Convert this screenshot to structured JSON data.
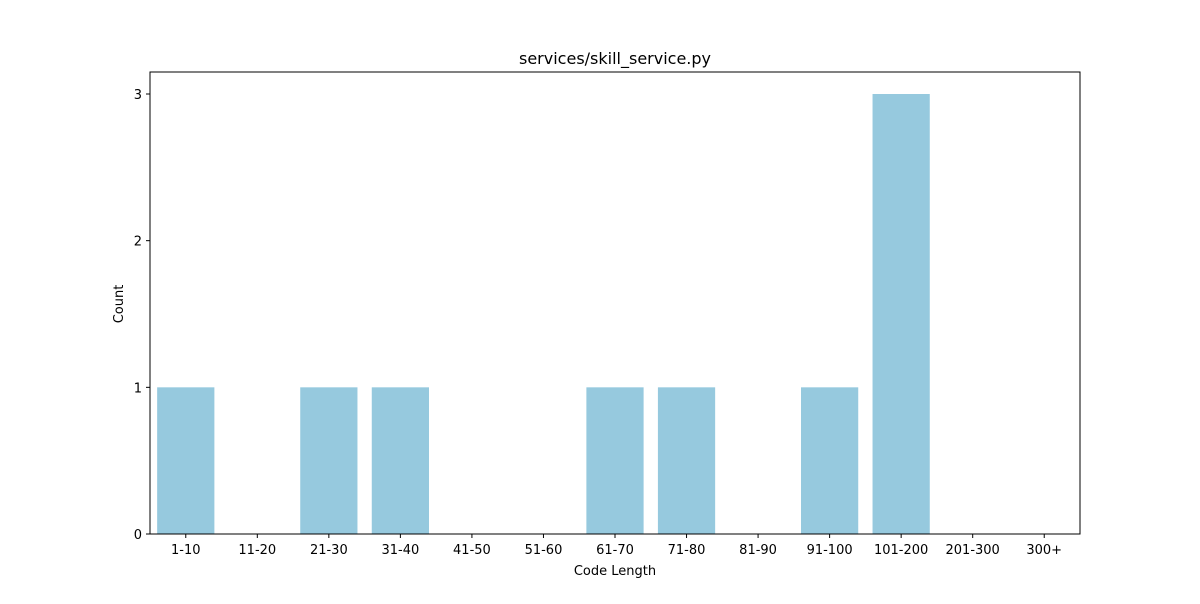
{
  "chart_data": {
    "type": "bar",
    "title": "services/skill_service.py",
    "xlabel": "Code Length",
    "ylabel": "Count",
    "categories": [
      "1-10",
      "11-20",
      "21-30",
      "31-40",
      "41-50",
      "51-60",
      "61-70",
      "71-80",
      "81-90",
      "91-100",
      "101-200",
      "201-300",
      "300+"
    ],
    "values": [
      1,
      0,
      1,
      1,
      0,
      0,
      1,
      1,
      0,
      1,
      3,
      0,
      0
    ],
    "ylim": [
      0,
      3.15
    ],
    "yticks": [
      0,
      1,
      2,
      3
    ],
    "grid": false,
    "bar_color": "#96c9de"
  }
}
